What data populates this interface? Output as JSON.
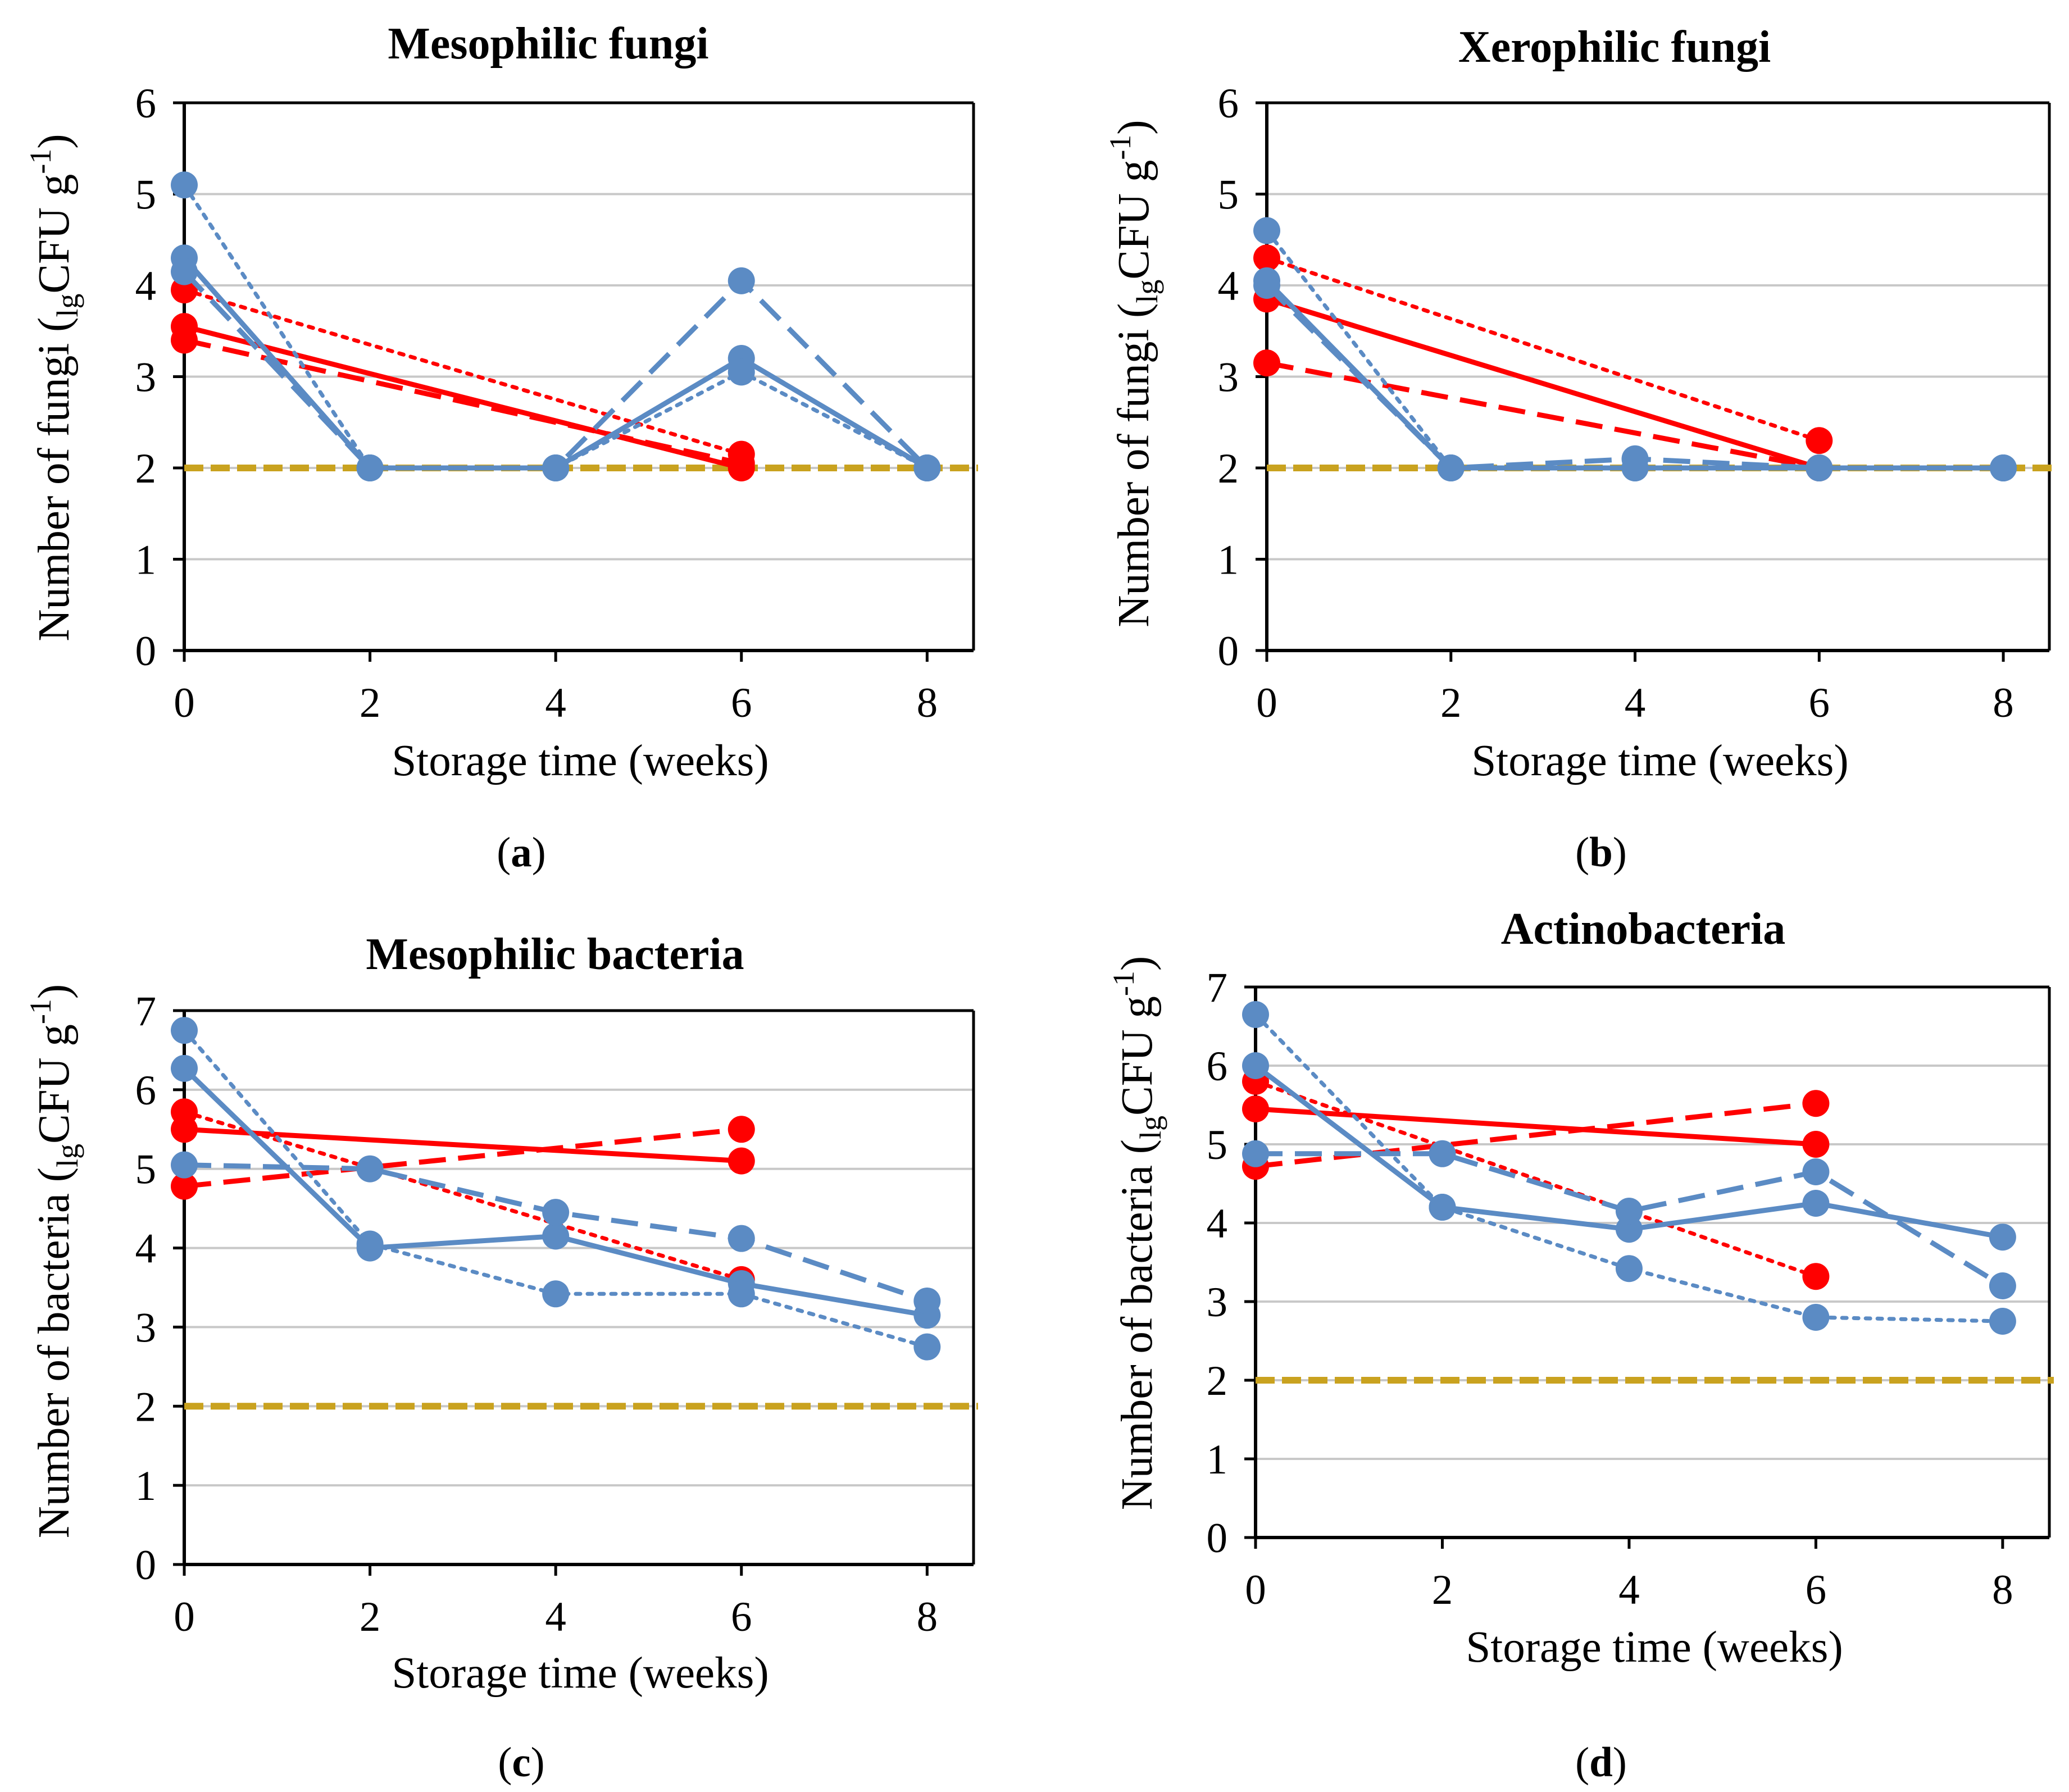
{
  "colors": {
    "red": "#FF0000",
    "blue": "#5B8BC4",
    "threshold": "#C9A21F",
    "grid": "#C8C8C8",
    "axis": "#000000"
  },
  "chart_data": [
    {
      "type": "line",
      "panel": "a",
      "title": "Mesophilic fungi",
      "xlabel": "Storage time (weeks)",
      "ylabel": {
        "prefix": "Number of fungi (",
        "sub": "lg",
        "mid": "CFU g",
        "sup": "-1",
        "suffix": ")"
      },
      "panel_label": {
        "open": "(",
        "letter": "a",
        "close": ")"
      },
      "xlim": [
        0,
        8.5
      ],
      "ylim": [
        0,
        6
      ],
      "xticks": [
        "0",
        "2",
        "4",
        "6",
        "8"
      ],
      "yticks": [
        "0",
        "1",
        "2",
        "3",
        "4",
        "5",
        "6"
      ],
      "threshold": 2,
      "series": [
        {
          "color": "red",
          "style": "solid",
          "x": [
            0,
            6
          ],
          "y": [
            3.55,
            2.0
          ]
        },
        {
          "color": "red",
          "style": "dashed",
          "x": [
            0,
            6
          ],
          "y": [
            3.4,
            2.05
          ]
        },
        {
          "color": "red",
          "style": "dotted",
          "x": [
            0,
            6
          ],
          "y": [
            3.95,
            2.15
          ]
        },
        {
          "color": "blue",
          "style": "solid",
          "x": [
            0,
            2,
            4,
            6,
            8
          ],
          "y": [
            4.3,
            2.0,
            2.0,
            3.2,
            2.0
          ]
        },
        {
          "color": "blue",
          "style": "dashed",
          "x": [
            0,
            2,
            4,
            6,
            8
          ],
          "y": [
            4.15,
            2.0,
            2.0,
            4.05,
            2.0
          ]
        },
        {
          "color": "blue",
          "style": "dotted",
          "x": [
            0,
            2,
            4,
            6,
            8
          ],
          "y": [
            5.1,
            2.0,
            2.0,
            3.05,
            2.0
          ]
        }
      ]
    },
    {
      "type": "line",
      "panel": "b",
      "title": "Xerophilic fungi",
      "xlabel": "Storage time (weeks)",
      "ylabel": {
        "prefix": "Number of fungi (",
        "sub": "lg",
        "mid": "CFU g",
        "sup": "-1",
        "suffix": ")"
      },
      "panel_label": {
        "open": "(",
        "letter": "b",
        "close": ")"
      },
      "xlim": [
        0,
        8.5
      ],
      "ylim": [
        0,
        6
      ],
      "xticks": [
        "0",
        "2",
        "4",
        "6",
        "8"
      ],
      "yticks": [
        "0",
        "1",
        "2",
        "3",
        "4",
        "5",
        "6"
      ],
      "threshold": 2,
      "series": [
        {
          "color": "red",
          "style": "solid",
          "x": [
            0,
            6
          ],
          "y": [
            3.85,
            2.0
          ]
        },
        {
          "color": "red",
          "style": "dashed",
          "x": [
            0,
            6
          ],
          "y": [
            3.15,
            2.0
          ]
        },
        {
          "color": "red",
          "style": "dotted",
          "x": [
            0,
            6
          ],
          "y": [
            4.3,
            2.3
          ]
        },
        {
          "color": "blue",
          "style": "solid",
          "x": [
            0,
            2,
            4,
            6,
            8
          ],
          "y": [
            4.05,
            2.0,
            2.0,
            2.0,
            2.0
          ]
        },
        {
          "color": "blue",
          "style": "dashed",
          "x": [
            0,
            2,
            4,
            6,
            8
          ],
          "y": [
            4.0,
            2.0,
            2.1,
            2.0,
            2.0
          ]
        },
        {
          "color": "blue",
          "style": "dotted",
          "x": [
            0,
            2,
            4,
            6,
            8
          ],
          "y": [
            4.6,
            2.0,
            2.0,
            2.0,
            2.0
          ]
        }
      ]
    },
    {
      "type": "line",
      "panel": "c",
      "title": "Mesophilic bacteria",
      "xlabel": "Storage time (weeks)",
      "ylabel": {
        "prefix": "Number of bacteria (",
        "sub": "lg",
        "mid": "CFU g",
        "sup": "-1",
        "suffix": ")"
      },
      "panel_label": {
        "open": "(",
        "letter": "c",
        "close": ")"
      },
      "xlim": [
        0,
        8.5
      ],
      "ylim": [
        0,
        7
      ],
      "xticks": [
        "0",
        "2",
        "4",
        "6",
        "8"
      ],
      "yticks": [
        "0",
        "1",
        "2",
        "3",
        "4",
        "5",
        "6",
        "7"
      ],
      "threshold": 2,
      "series": [
        {
          "color": "red",
          "style": "solid",
          "x": [
            0,
            6
          ],
          "y": [
            5.5,
            5.1
          ]
        },
        {
          "color": "red",
          "style": "dashed",
          "x": [
            0,
            6
          ],
          "y": [
            4.78,
            5.5
          ]
        },
        {
          "color": "red",
          "style": "dotted",
          "x": [
            0,
            6
          ],
          "y": [
            5.72,
            3.6
          ]
        },
        {
          "color": "blue",
          "style": "solid",
          "x": [
            0,
            2,
            4,
            6,
            8
          ],
          "y": [
            6.27,
            4.0,
            4.15,
            3.55,
            3.15
          ]
        },
        {
          "color": "blue",
          "style": "dashed",
          "x": [
            0,
            2,
            4,
            6,
            8
          ],
          "y": [
            5.05,
            5.0,
            4.45,
            4.12,
            3.33
          ]
        },
        {
          "color": "blue",
          "style": "dotted",
          "x": [
            0,
            2,
            4,
            6,
            8
          ],
          "y": [
            6.75,
            4.05,
            3.42,
            3.42,
            2.75
          ]
        }
      ]
    },
    {
      "type": "line",
      "panel": "d",
      "title": "Actinobacteria",
      "xlabel": "Storage time (weeks)",
      "ylabel": {
        "prefix": "Number of bacteria (",
        "sub": "lg",
        "mid": "CFU g",
        "sup": "-1",
        "suffix": ")"
      },
      "panel_label": {
        "open": "(",
        "letter": "d",
        "close": ")"
      },
      "xlim": [
        0,
        8.5
      ],
      "ylim": [
        0,
        7
      ],
      "xticks": [
        "0",
        "2",
        "4",
        "6",
        "8"
      ],
      "yticks": [
        "0",
        "1",
        "2",
        "3",
        "4",
        "5",
        "6",
        "7"
      ],
      "threshold": 2,
      "series": [
        {
          "color": "red",
          "style": "solid",
          "x": [
            0,
            6
          ],
          "y": [
            5.45,
            5.0
          ]
        },
        {
          "color": "red",
          "style": "dashed",
          "x": [
            0,
            6
          ],
          "y": [
            4.72,
            5.52
          ]
        },
        {
          "color": "red",
          "style": "dotted",
          "x": [
            0,
            6
          ],
          "y": [
            5.8,
            3.32
          ]
        },
        {
          "color": "blue",
          "style": "solid",
          "x": [
            0,
            2,
            4,
            6,
            8
          ],
          "y": [
            6.0,
            4.2,
            3.92,
            4.25,
            3.82
          ]
        },
        {
          "color": "blue",
          "style": "dashed",
          "x": [
            0,
            2,
            4,
            6,
            8
          ],
          "y": [
            4.88,
            4.88,
            4.15,
            4.65,
            3.2
          ]
        },
        {
          "color": "blue",
          "style": "dotted",
          "x": [
            0,
            2,
            4,
            6,
            8
          ],
          "y": [
            6.65,
            4.2,
            3.42,
            2.8,
            2.75
          ]
        }
      ]
    }
  ]
}
